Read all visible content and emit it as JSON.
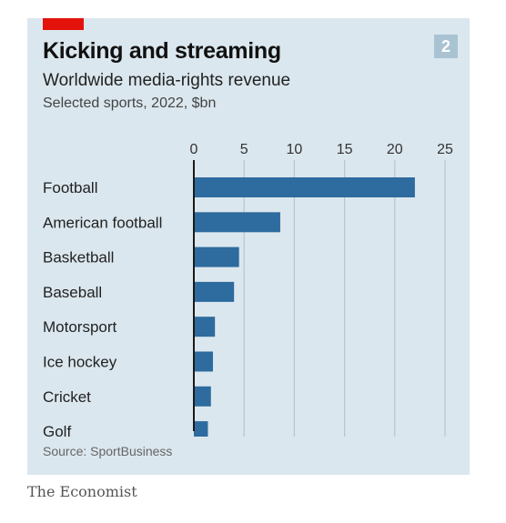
{
  "panel": {
    "title": "Kicking and streaming",
    "subtitle": "Worldwide media-rights revenue",
    "subsubtitle": "Selected sports, 2022, $bn",
    "chart_number": "2",
    "source": "Source: SportBusiness"
  },
  "brand": "The Economist",
  "colors": {
    "background": "#dbe7ee",
    "bar": "#2e6b9e",
    "accent": "#e3120b",
    "badge": "#a9c3d3"
  },
  "chart_data": {
    "type": "bar",
    "orientation": "horizontal",
    "categories": [
      "Football",
      "American football",
      "Basketball",
      "Baseball",
      "Motorsport",
      "Ice hockey",
      "Cricket",
      "Golf"
    ],
    "values": [
      22.0,
      8.6,
      4.5,
      4.0,
      2.1,
      1.9,
      1.7,
      1.4
    ],
    "xlim": [
      0,
      25
    ],
    "xticks": [
      0,
      5,
      10,
      15,
      20,
      25
    ],
    "xtick_labels": [
      "0",
      "5",
      "10",
      "15",
      "20",
      "25"
    ],
    "grid": "vertical",
    "title": "Kicking and streaming",
    "xlabel": "",
    "ylabel": ""
  }
}
